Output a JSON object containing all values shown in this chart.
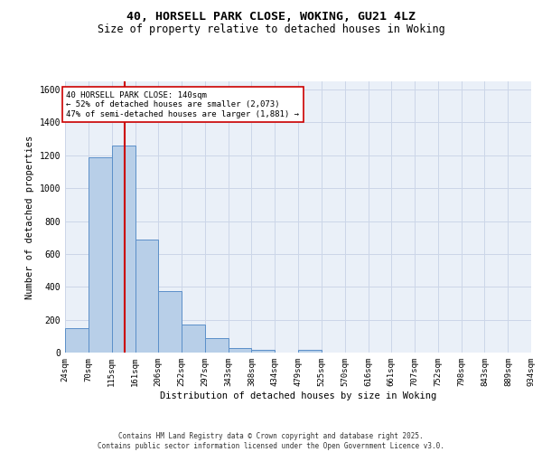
{
  "title1": "40, HORSELL PARK CLOSE, WOKING, GU21 4LZ",
  "title2": "Size of property relative to detached houses in Woking",
  "xlabel": "Distribution of detached houses by size in Woking",
  "ylabel": "Number of detached properties",
  "bins": [
    24,
    70,
    115,
    161,
    206,
    252,
    297,
    343,
    388,
    434,
    479,
    525,
    570,
    616,
    661,
    707,
    752,
    798,
    843,
    889,
    934
  ],
  "bar_heights": [
    148,
    1190,
    1260,
    690,
    375,
    170,
    90,
    30,
    15,
    0,
    15,
    0,
    0,
    0,
    0,
    0,
    0,
    0,
    0,
    0
  ],
  "bar_color": "#b8cfe8",
  "bar_edge_color": "#5b8fc9",
  "reference_line_x": 140,
  "reference_line_color": "#cc0000",
  "annotation_text": "40 HORSELL PARK CLOSE: 140sqm\n← 52% of detached houses are smaller (2,073)\n47% of semi-detached houses are larger (1,881) →",
  "annotation_box_color": "#ffffff",
  "annotation_box_edge": "#cc0000",
  "grid_color": "#ccd6e8",
  "background_color": "#eaf0f8",
  "ylim": [
    0,
    1650
  ],
  "yticks": [
    0,
    200,
    400,
    600,
    800,
    1000,
    1200,
    1400,
    1600
  ],
  "footer1": "Contains HM Land Registry data © Crown copyright and database right 2025.",
  "footer2": "Contains public sector information licensed under the Open Government Licence v3.0."
}
